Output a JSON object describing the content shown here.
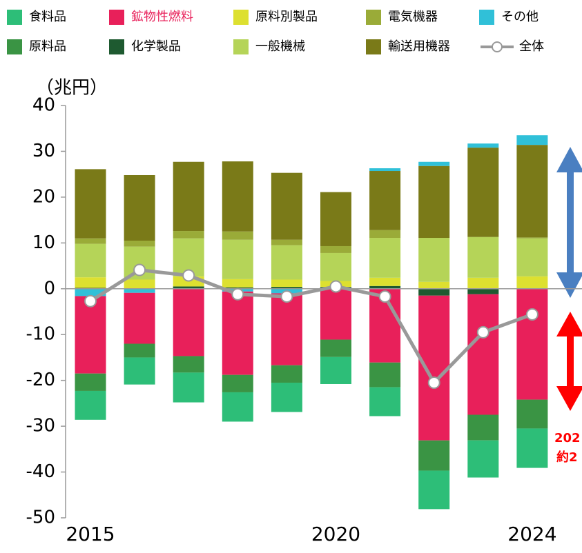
{
  "chart_data": {
    "type": "bar",
    "stacked": true,
    "y_label": "（兆円）",
    "categories": [
      "2015",
      null,
      null,
      null,
      null,
      "2020",
      null,
      null,
      null,
      "2024"
    ],
    "ylim": [
      -50,
      40
    ],
    "yticks": [
      -50,
      -40,
      -30,
      -20,
      -10,
      0,
      10,
      20,
      30,
      40
    ],
    "series": [
      {
        "name": "食料品",
        "color": "#2dbe78",
        "values": [
          -6.3,
          -5.9,
          -6.5,
          -6.4,
          -6.4,
          -5.9,
          -6.3,
          -8.4,
          -8.1,
          -8.6
        ]
      },
      {
        "name": "鉱物性燃料",
        "color": "#e8205a",
        "label_color": "#e8205a",
        "values": [
          -16.9,
          -11.1,
          -14.7,
          -18.2,
          -15.7,
          -11.1,
          -16.1,
          -31.6,
          -26.3,
          -24.2
        ]
      },
      {
        "name": "原料別製品",
        "color": "#dde030",
        "values": [
          2.3,
          2.0,
          2.2,
          1.8,
          1.6,
          1.3,
          1.8,
          1.5,
          2.4,
          2.7
        ]
      },
      {
        "name": "電気機器",
        "color": "#9aab38",
        "values": [
          1.2,
          1.3,
          1.6,
          1.8,
          1.2,
          1.5,
          1.7,
          0,
          0,
          0.2
        ]
      },
      {
        "name": "その他",
        "color": "#30c0d8",
        "values": [
          -1.6,
          -0.9,
          0,
          -0.6,
          -1.0,
          0,
          0.6,
          0.9,
          0.9,
          2.1
        ]
      },
      {
        "name": "原料品",
        "color": "#3a9444",
        "values": [
          -3.8,
          -3.0,
          -3.6,
          -3.8,
          -3.8,
          -3.8,
          -5.4,
          -6.6,
          -5.6,
          -6.3
        ]
      },
      {
        "name": "化学製品",
        "color": "#1e5a30",
        "values": [
          0.2,
          0,
          0.5,
          0.3,
          0.4,
          0.4,
          0.6,
          -1.5,
          -1.2,
          0
        ]
      },
      {
        "name": "一般機械",
        "color": "#b5d458",
        "values": [
          7.3,
          7.2,
          8.3,
          8.6,
          7.5,
          6.1,
          8.7,
          9.6,
          8.9,
          8.3
        ]
      },
      {
        "name": "輸送用機器",
        "color": "#7a7a18",
        "values": [
          15.1,
          14.3,
          15.1,
          15.3,
          14.6,
          11.8,
          12.9,
          15.7,
          19.5,
          20.2
        ]
      },
      {
        "name": "全体",
        "color": "#999999",
        "type": "line",
        "values": [
          -2.7,
          4.1,
          2.9,
          -1.2,
          -1.7,
          0.5,
          -1.7,
          -20.5,
          -9.5,
          -5.6
        ]
      }
    ],
    "stack_order_positive": [
      "化学製品",
      "原料別製品",
      "一般機械",
      "電気機器",
      "輸送用機器",
      "その他"
    ],
    "stack_order_negative": [
      "化学製品",
      "電気機器",
      "その他",
      "鉱物性燃料",
      "原料品",
      "食料品"
    ],
    "annotations": [
      "202",
      "約2"
    ]
  }
}
